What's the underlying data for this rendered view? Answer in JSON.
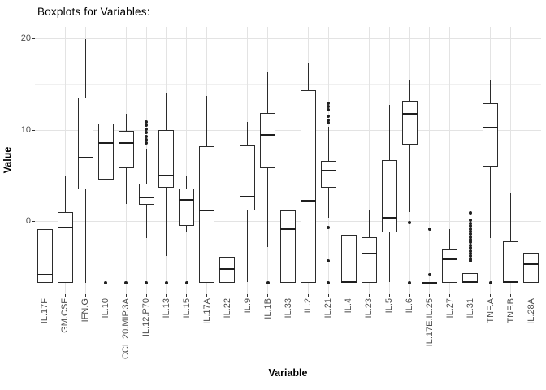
{
  "window": {
    "background": "#ffffff"
  },
  "colors": {
    "box_border": "#2b2b2b",
    "median": "#1f1f1f",
    "outlier": "#1f1f1f",
    "grid_major": "#e3e3e3",
    "grid_minor": "#f0f0f0",
    "tick_text": "#4d4d4d",
    "axis_tick": "#333333",
    "title_text": "#000000"
  },
  "chart_data": {
    "type": "boxplot",
    "title": "Boxplots for Variables:",
    "xlabel": "Variable",
    "ylabel": "Value",
    "yticks": [
      0,
      10,
      20
    ],
    "ylim": [
      -7.9,
      21.3
    ],
    "grid_major": [
      0,
      10,
      20
    ],
    "grid_minor": [
      -5,
      5,
      15
    ],
    "legend": "none",
    "categories": [
      "IL.17F",
      "GM.CSF",
      "IFN.G",
      "IL.10",
      "CCL.20.MIP.3A",
      "IL.12.P70",
      "IL.13",
      "IL.15",
      "IL.17A",
      "IL.22",
      "IL.9",
      "IL.1B",
      "IL.33",
      "IL.2",
      "IL.21",
      "IL.4",
      "IL.23",
      "IL.5",
      "IL.6",
      "IL.17E.IL.25",
      "IL.27",
      "IL.31",
      "TNF.A",
      "TNF.B",
      "IL.28A"
    ],
    "series": [
      {
        "name": "IL.17F",
        "low": -6.7,
        "q1": -6.7,
        "median": -5.8,
        "q3": -0.8,
        "high": 5.2,
        "outliers": []
      },
      {
        "name": "GM.CSF",
        "low": -6.7,
        "q1": -6.7,
        "median": -0.7,
        "q3": 1.0,
        "high": 4.9,
        "outliers": []
      },
      {
        "name": "IFN.G",
        "low": -6.7,
        "q1": 3.5,
        "median": 7.0,
        "q3": 13.6,
        "high": 20.0,
        "outliers": []
      },
      {
        "name": "IL.10",
        "low": -3.0,
        "q1": 4.6,
        "median": 8.6,
        "q3": 10.7,
        "high": 13.2,
        "outliers": [
          -6.7
        ]
      },
      {
        "name": "CCL.20.MIP.3A",
        "low": 1.9,
        "q1": 5.8,
        "median": 8.6,
        "q3": 9.9,
        "high": 11.8,
        "outliers": [
          -6.7
        ]
      },
      {
        "name": "IL.12.P70",
        "low": -1.8,
        "q1": 1.8,
        "median": 2.6,
        "q3": 4.1,
        "high": 8.0,
        "outliers": [
          10.9,
          10.5,
          10.1,
          9.7,
          9.3,
          8.9,
          8.6,
          -6.7
        ]
      },
      {
        "name": "IL.13",
        "low": -3.8,
        "q1": 3.7,
        "median": 5.0,
        "q3": 10.0,
        "high": 14.1,
        "outliers": [
          -6.7
        ]
      },
      {
        "name": "IL.15",
        "low": -1.1,
        "q1": -0.5,
        "median": 2.4,
        "q3": 3.6,
        "high": 5.0,
        "outliers": [
          -6.7
        ]
      },
      {
        "name": "IL.17A",
        "low": -6.7,
        "q1": -6.7,
        "median": 1.2,
        "q3": 8.2,
        "high": 13.7,
        "outliers": []
      },
      {
        "name": "IL.22",
        "low": -6.7,
        "q1": -6.7,
        "median": -5.2,
        "q3": -3.9,
        "high": -0.7,
        "outliers": []
      },
      {
        "name": "IL.9",
        "low": -6.6,
        "q1": 1.2,
        "median": 2.7,
        "q3": 8.3,
        "high": 10.9,
        "outliers": []
      },
      {
        "name": "IL.1B",
        "low": -2.8,
        "q1": 5.8,
        "median": 9.5,
        "q3": 11.9,
        "high": 16.4,
        "outliers": [
          -6.7
        ]
      },
      {
        "name": "IL.33",
        "low": -6.7,
        "q1": -6.7,
        "median": -0.8,
        "q3": 1.2,
        "high": 2.6,
        "outliers": []
      },
      {
        "name": "IL.2",
        "low": -6.7,
        "q1": -6.7,
        "median": 2.3,
        "q3": 14.4,
        "high": 17.3,
        "outliers": []
      },
      {
        "name": "IL.21",
        "low": 0.4,
        "q1": 3.7,
        "median": 5.6,
        "q3": 6.6,
        "high": 10.4,
        "outliers": [
          12.9,
          12.6,
          12.2,
          11.5,
          11.1,
          10.8,
          -0.7,
          -4.3,
          -6.7
        ]
      },
      {
        "name": "IL.4",
        "low": -6.7,
        "q1": -6.7,
        "median": -6.6,
        "q3": -1.5,
        "high": 3.4,
        "outliers": []
      },
      {
        "name": "IL.23",
        "low": -6.7,
        "q1": -6.7,
        "median": -3.5,
        "q3": -1.7,
        "high": 1.3,
        "outliers": []
      },
      {
        "name": "IL.5",
        "low": -6.6,
        "q1": -1.2,
        "median": 0.4,
        "q3": 6.7,
        "high": 12.8,
        "outliers": []
      },
      {
        "name": "IL.6",
        "low": 1.0,
        "q1": 8.4,
        "median": 11.8,
        "q3": 13.2,
        "high": 15.5,
        "outliers": [
          -0.1,
          -6.7
        ]
      },
      {
        "name": "IL.17E.IL.25",
        "low": -6.7,
        "q1": -6.7,
        "median": -6.7,
        "q3": -6.7,
        "high": -6.7,
        "outliers": [
          -0.8,
          -5.8
        ]
      },
      {
        "name": "IL.27",
        "low": -6.7,
        "q1": -6.7,
        "median": -4.1,
        "q3": -3.1,
        "high": -0.8,
        "outliers": []
      },
      {
        "name": "IL.31",
        "low": -6.7,
        "q1": -6.7,
        "median": -6.6,
        "q3": -5.6,
        "high": -4.4,
        "outliers": [
          0.9,
          0.1,
          -0.2,
          -0.5,
          -0.8,
          -1.1,
          -1.4,
          -1.7,
          -2.0,
          -2.3,
          -2.6,
          -2.9,
          -3.2,
          -3.5,
          -3.8,
          -4.1,
          -4.3
        ]
      },
      {
        "name": "TNF.A",
        "low": -1.8,
        "q1": 6.0,
        "median": 10.3,
        "q3": 12.9,
        "high": 15.5,
        "outliers": [
          -6.7
        ]
      },
      {
        "name": "TNF.B",
        "low": -6.7,
        "q1": -6.7,
        "median": -6.6,
        "q3": -2.2,
        "high": 3.2,
        "outliers": []
      },
      {
        "name": "IL.28A",
        "low": -6.7,
        "q1": -6.7,
        "median": -4.7,
        "q3": -3.4,
        "high": -1.1,
        "outliers": []
      }
    ]
  }
}
